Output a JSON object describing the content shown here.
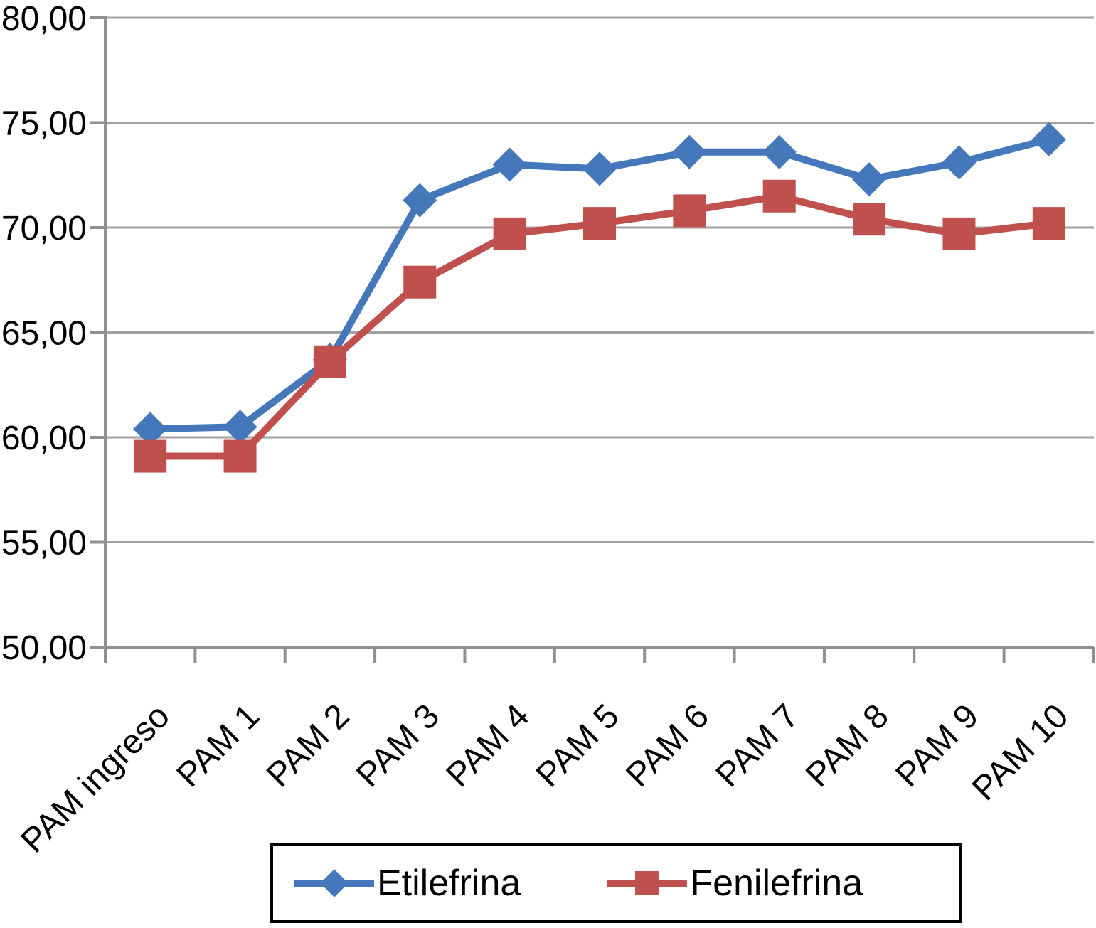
{
  "chart_data": {
    "type": "line",
    "title": "",
    "xlabel": "",
    "ylabel": "",
    "categories": [
      "PAM ingreso",
      "PAM 1",
      "PAM 2",
      "PAM 3",
      "PAM 4",
      "PAM 5",
      "PAM 6",
      "PAM 7",
      "PAM 8",
      "PAM 9",
      "PAM 10"
    ],
    "series": [
      {
        "name": "Etilefrina",
        "color": "#4478bb",
        "marker": "diamond",
        "values": [
          60.4,
          60.5,
          63.7,
          71.3,
          73.0,
          72.8,
          73.6,
          73.6,
          72.3,
          73.1,
          74.2
        ]
      },
      {
        "name": "Fenilefrina",
        "color": "#c0504d",
        "marker": "square",
        "values": [
          59.1,
          59.1,
          63.6,
          67.4,
          69.7,
          70.2,
          70.8,
          71.5,
          70.4,
          69.7,
          70.2
        ]
      }
    ],
    "ylim": [
      50,
      80
    ],
    "y_ticks": [
      {
        "value": 80,
        "label": "80,00"
      },
      {
        "value": 75,
        "label": "75,00"
      },
      {
        "value": 70,
        "label": "70,00"
      },
      {
        "value": 65,
        "label": "65,00"
      },
      {
        "value": 60,
        "label": "60,00"
      },
      {
        "value": 55,
        "label": "55,00"
      },
      {
        "value": 50,
        "label": "50,00"
      }
    ],
    "grid": "horizontal",
    "legend_position": "bottom",
    "grid_color": "#a0a0a0",
    "axis_color": "#8f8f8f",
    "text_color": "#000000"
  }
}
